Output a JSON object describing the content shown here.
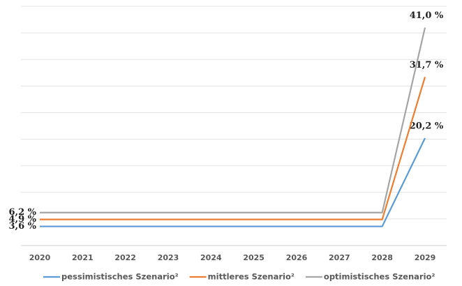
{
  "chart_data": {
    "type": "line",
    "categories": [
      "2020",
      "2021",
      "2022",
      "2023",
      "2024",
      "2025",
      "2026",
      "2027",
      "2028",
      "2029"
    ],
    "ylim": [
      0,
      45
    ],
    "yticks": [
      0,
      5,
      10,
      15,
      20,
      25,
      30,
      35,
      40,
      45
    ],
    "grid": true,
    "legend": "bottom",
    "series": [
      {
        "name": "pessimistisches Szenario²",
        "color": "#5b9bd5",
        "values": [
          3.6,
          3.6,
          3.6,
          3.6,
          3.6,
          3.6,
          3.6,
          3.6,
          3.6,
          20.2
        ],
        "value_labels": [
          "3,6 %",
          null,
          null,
          null,
          null,
          null,
          null,
          null,
          null,
          "20,2 %"
        ]
      },
      {
        "name": "mittleres Szenario²",
        "color": "#ed7d31",
        "values": [
          4.9,
          4.9,
          4.9,
          4.9,
          4.9,
          4.9,
          4.9,
          4.9,
          4.9,
          31.7
        ],
        "value_labels": [
          "4,9 %",
          null,
          null,
          null,
          null,
          null,
          null,
          null,
          null,
          "31,7 %"
        ]
      },
      {
        "name": "optimistisches Szenario²",
        "color": "#a5a5a5",
        "values": [
          6.2,
          6.2,
          6.2,
          6.2,
          6.2,
          6.2,
          6.2,
          6.2,
          6.2,
          41.0
        ],
        "value_labels": [
          "6,2 %",
          null,
          null,
          null,
          null,
          null,
          null,
          null,
          null,
          "41,0 %"
        ]
      }
    ]
  }
}
